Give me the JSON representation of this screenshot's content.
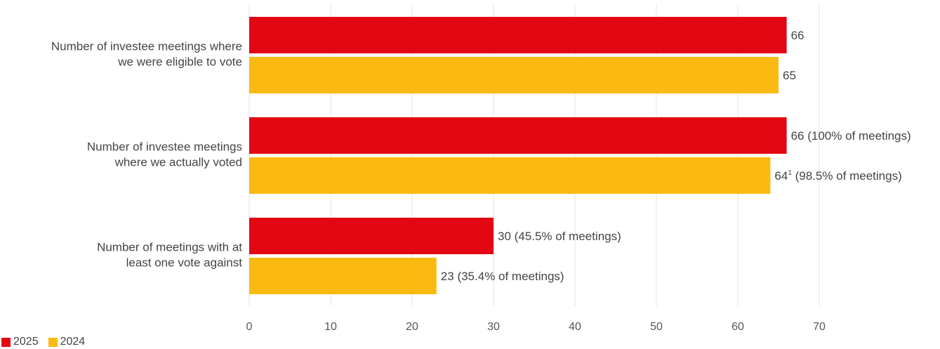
{
  "chart_data": {
    "type": "bar",
    "orientation": "horizontal",
    "categories": [
      [
        "Number of investee meetings where",
        "we were eligible to vote"
      ],
      [
        "Number of investee meetings",
        "where we actually voted"
      ],
      [
        "Number of meetings with at",
        "least one vote against"
      ]
    ],
    "series": [
      {
        "name": "2025",
        "color": "#E30613",
        "values": [
          66,
          66,
          30
        ],
        "labels": [
          {
            "main": "66",
            "sup": "",
            "rest": ""
          },
          {
            "main": "66",
            "sup": "",
            "rest": " (100% of meetings)"
          },
          {
            "main": "30",
            "sup": "",
            "rest": " (45.5% of meetings)"
          }
        ]
      },
      {
        "name": "2024",
        "color": "#FBBA12",
        "values": [
          65,
          64,
          23
        ],
        "labels": [
          {
            "main": "65",
            "sup": "",
            "rest": ""
          },
          {
            "main": "64",
            "sup": "1",
            "rest": " (98.5% of meetings)"
          },
          {
            "main": "23",
            "sup": "",
            "rest": " (35.4% of meetings)"
          }
        ]
      }
    ],
    "xlim": [
      0,
      70
    ],
    "xticks": [
      0,
      10,
      20,
      30,
      40,
      50,
      60,
      70
    ],
    "grid": true,
    "legend_position": "bottom-left",
    "title": "",
    "xlabel": "",
    "ylabel": ""
  }
}
